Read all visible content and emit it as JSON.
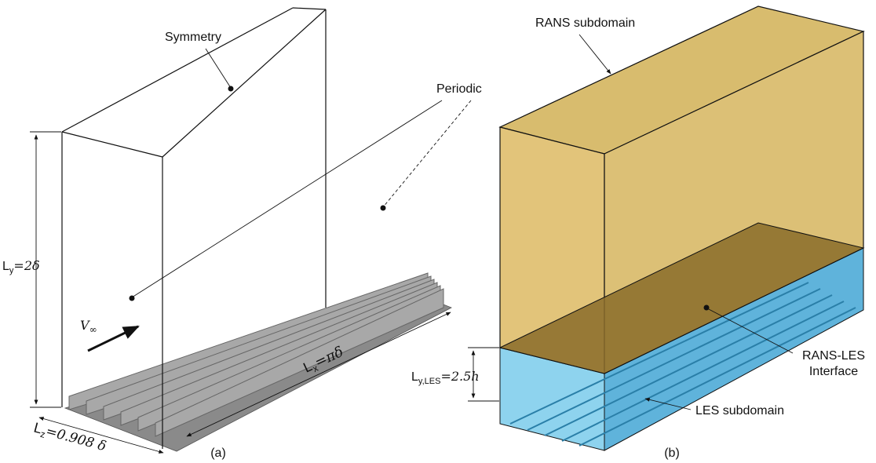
{
  "panel_a": {
    "symmetry": "Symmetry",
    "periodic": "Periodic",
    "ly": {
      "base": "L",
      "sub": "y",
      "rest": "=2δ"
    },
    "velocity": {
      "base": "V",
      "sub": "∞"
    },
    "lx": {
      "base": "L",
      "sub": "x",
      "rest": "=πδ"
    },
    "lz": {
      "base": "L",
      "sub": "z",
      "rest": "=0.908 δ"
    },
    "caption": "(a)"
  },
  "panel_b": {
    "rans": "RANS subdomain",
    "interface_1": "RANS-LES",
    "interface_2": "Interface",
    "lyles": {
      "base": "L",
      "sub": "y,LES",
      "rest": "=2.5h"
    },
    "les": "LES subdomain",
    "caption": "(b)"
  }
}
